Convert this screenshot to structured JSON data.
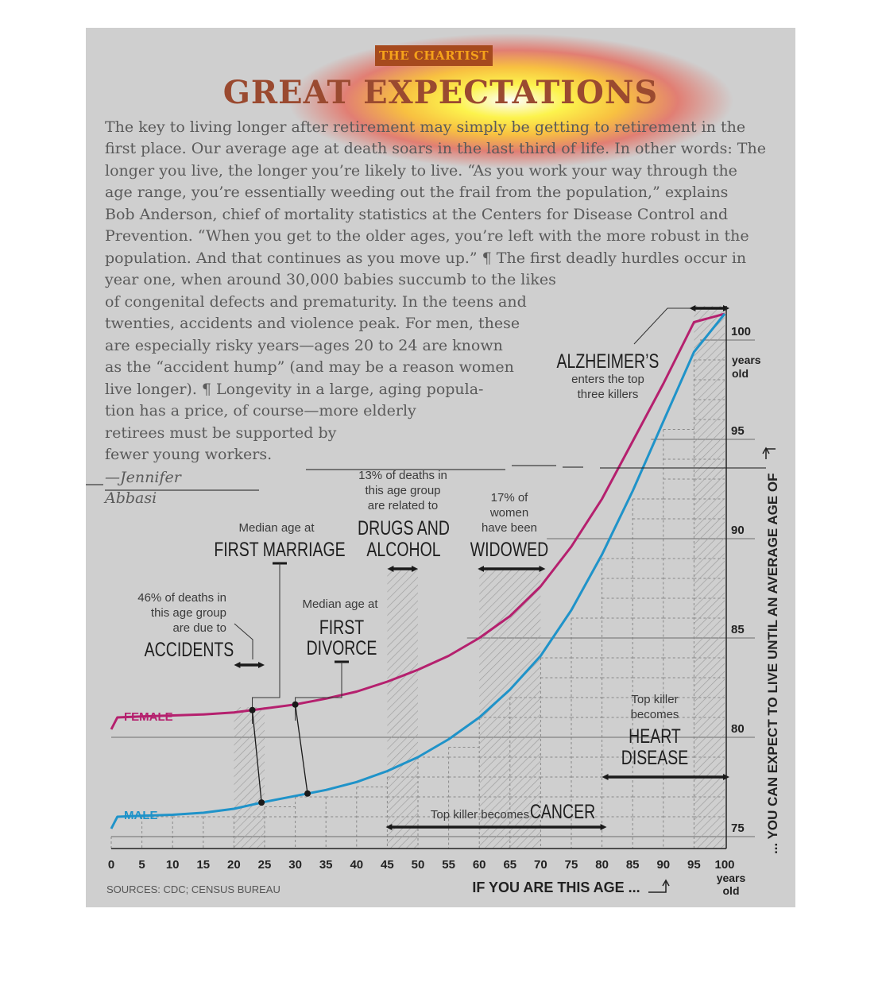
{
  "header": {
    "kicker": "THE CHARTIST",
    "title": "GREAT EXPECTATIONS"
  },
  "article": {
    "lines": [
      "The key to living longer after retirement may simply be getting to retirement in the",
      "first place. Our average age at death soars in the last third of life. In other words: The",
      "longer you live, the longer you’re likely to live. “As you work your way through the",
      "age range, you’re essentially weeding out the frail from the population,” explains",
      "Bob Anderson, chief of mortality statistics at the Centers for Disease Control and",
      "Prevention. “When you get to the older ages, you’re left with the more robust in the",
      "population. And that continues as you move up.” ¶ The first deadly hurdles occur in",
      "year one, when around 30,000 babies succumb to the likes",
      "of congenital defects and prematurity. In the teens and",
      "twenties, accidents and violence peak. For men, these",
      "are especially risky years—ages 20 to 24 are known",
      "as the “accident hump” (and may be a reason women",
      "live longer). ¶ Longevity in a large, aging popula-",
      "tion has a price, of course—more elderly",
      "retirees must be supported by",
      "fewer young workers."
    ],
    "byline_1": "—Jennifer",
    "byline_2": "Abbasi"
  },
  "chart_data": {
    "type": "line",
    "xlabel": "IF YOU ARE THIS AGE ...",
    "ylabel": "... YOU CAN EXPECT TO LIVE UNTIL AN AVERAGE AGE OF",
    "x_unit": "years old",
    "y_unit": "years old",
    "xlim": [
      0,
      100
    ],
    "ylim": [
      75,
      102
    ],
    "x_ticks": [
      0,
      5,
      10,
      15,
      20,
      25,
      30,
      35,
      40,
      45,
      50,
      55,
      60,
      65,
      70,
      75,
      80,
      85,
      90,
      95,
      100
    ],
    "y_ticks": [
      75,
      80,
      85,
      90,
      95,
      100
    ],
    "grid": true,
    "series": [
      {
        "name": "FEMALE",
        "color": "#b5206e",
        "x": [
          0,
          1,
          5,
          10,
          15,
          20,
          25,
          30,
          35,
          40,
          45,
          50,
          55,
          60,
          65,
          70,
          75,
          80,
          85,
          90,
          95,
          100
        ],
        "y": [
          80.4,
          81.0,
          81.05,
          81.1,
          81.15,
          81.25,
          81.45,
          81.65,
          81.95,
          82.3,
          82.8,
          83.4,
          84.1,
          85.0,
          86.1,
          87.6,
          89.6,
          92.0,
          94.9,
          97.8,
          100.9,
          103.9
        ]
      },
      {
        "name": "MALE",
        "color": "#1f93c9",
        "x": [
          0,
          1,
          5,
          10,
          15,
          20,
          25,
          30,
          35,
          40,
          45,
          50,
          55,
          60,
          65,
          70,
          75,
          80,
          85,
          90,
          95,
          100
        ],
        "y": [
          75.4,
          76.0,
          76.05,
          76.1,
          76.2,
          76.4,
          76.75,
          77.05,
          77.35,
          77.75,
          78.3,
          79.0,
          79.9,
          81.0,
          82.4,
          84.1,
          86.4,
          89.2,
          92.4,
          95.9,
          99.4,
          103.2
        ]
      }
    ],
    "annotations": {
      "accidents": {
        "pre": [
          "46% of deaths in",
          "this age group",
          "are due to"
        ],
        "label": "ACCIDENTS",
        "range": [
          20,
          25
        ]
      },
      "first_marriage": {
        "pre": "Median age at",
        "label": "FIRST MARRIAGE",
        "female_age": 23,
        "male_age": 24.5
      },
      "first_divorce": {
        "pre": "Median age at",
        "label": [
          "FIRST",
          "DIVORCE"
        ],
        "female_age": 30,
        "male_age": 32
      },
      "drugs_alcohol": {
        "pre": [
          "13% of deaths in",
          "this age group",
          "are related to"
        ],
        "label": [
          "DRUGS AND",
          "ALCOHOL"
        ],
        "range": [
          45,
          50
        ]
      },
      "widowed": {
        "pre": [
          "17% of",
          "women",
          "have been"
        ],
        "label": "WIDOWED",
        "range": [
          60,
          70
        ]
      },
      "alzheimers": {
        "label": "ALZHEIMER’S",
        "post": [
          "enters the top",
          "three killers"
        ],
        "range": [
          95,
          100
        ]
      },
      "heart_disease": {
        "pre": [
          "Top killer",
          "becomes"
        ],
        "label": [
          "HEART",
          "DISEASE"
        ],
        "range": [
          80,
          100
        ]
      },
      "cancer": {
        "pre": "Top killer becomes",
        "label": "CANCER",
        "range": [
          45,
          80
        ]
      }
    },
    "sources": "SOURCES: CDC; CENSUS BUREAU"
  }
}
